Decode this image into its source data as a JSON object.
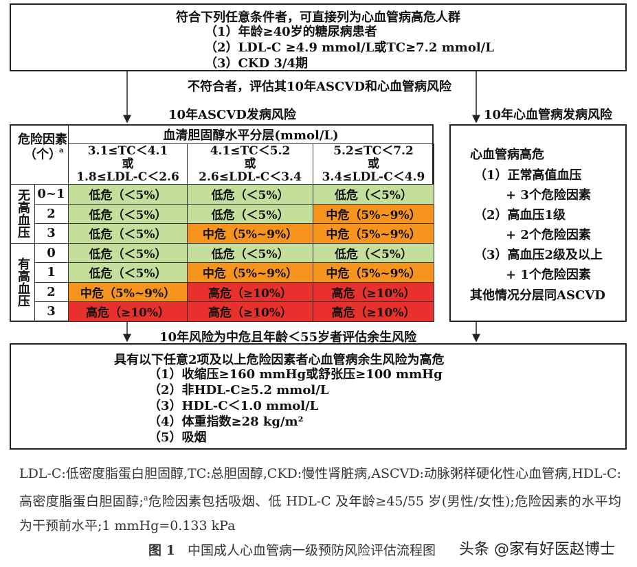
{
  "top_box": {
    "title": "符合下列任意条件者，可直接列为心血管病高危人群",
    "items": [
      "（1）年龄≥40岁的糖尿病患者",
      "（2）LDL-C ≥4.9 mmol/L或TC≥7.2 mmol/L",
      "（3）CKD 3/4期"
    ]
  },
  "middle_text": "不符合者，评估其10年ASCVD和心血管病风险",
  "left_label": "10年ASCVD发病风险",
  "right_label": "10年心血管病发病风险",
  "table": {
    "corner": "危险因素",
    "corner_sup": "a",
    "corner_unit": "（个）",
    "header": "血清胆固醇水平分层(mmol/L)",
    "columns": [
      {
        "tc": "3.1≤TC＜4.1",
        "or": "或",
        "ldl": "1.8≤LDL-C＜2.6"
      },
      {
        "tc": "4.1≤TC＜5.2",
        "or": "或",
        "ldl": "2.6≤LDL-C＜3.4"
      },
      {
        "tc": "5.2≤TC＜7.2",
        "or": "或",
        "ldl": "3.4≤LDL-C＜4.9"
      }
    ],
    "groups": [
      {
        "label": "无高血压",
        "rows": [
          {
            "count": "0~1",
            "cells": [
              {
                "text": "低危（＜5%）",
                "color": "#c4df9b"
              },
              {
                "text": "低危（＜5%）",
                "color": "#c4df9b"
              },
              {
                "text": "低危（＜5%）",
                "color": "#c4df9b"
              }
            ]
          },
          {
            "count": "2",
            "cells": [
              {
                "text": "低危（＜5%）",
                "color": "#c4df9b"
              },
              {
                "text": "低危（＜5%）",
                "color": "#c4df9b"
              },
              {
                "text": "中危（5%~9%）",
                "color": "#f7941d"
              }
            ]
          },
          {
            "count": "3",
            "cells": [
              {
                "text": "低危（＜5%）",
                "color": "#c4df9b"
              },
              {
                "text": "中危（5%~9%）",
                "color": "#f7941d"
              },
              {
                "text": "中危（5%~9%）",
                "color": "#f7941d"
              }
            ]
          }
        ]
      },
      {
        "label": "有高血压",
        "rows": [
          {
            "count": "0",
            "cells": [
              {
                "text": "低危（＜5%）",
                "color": "#c4df9b"
              },
              {
                "text": "低危（＜5%）",
                "color": "#c4df9b"
              },
              {
                "text": "低危（＜5%）",
                "color": "#c4df9b"
              }
            ]
          },
          {
            "count": "1",
            "cells": [
              {
                "text": "低危（＜5%）",
                "color": "#c4df9b"
              },
              {
                "text": "中危（5%~9%）",
                "color": "#f7941d"
              },
              {
                "text": "中危（5%~9%）",
                "color": "#f7941d"
              }
            ]
          },
          {
            "count": "2",
            "cells": [
              {
                "text": "中危（5%~9%）",
                "color": "#f7941d"
              },
              {
                "text": "高危（≥10%）",
                "color": "#e8312c"
              },
              {
                "text": "高危（≥10%）",
                "color": "#e8312c"
              }
            ]
          },
          {
            "count": "3",
            "cells": [
              {
                "text": "高危（≥10%）",
                "color": "#e8312c"
              },
              {
                "text": "高危（≥10%）",
                "color": "#e8312c"
              },
              {
                "text": "高危（≥10%）",
                "color": "#e8312c"
              }
            ]
          }
        ]
      }
    ]
  },
  "right_box": {
    "title": "心血管病高危",
    "items": [
      "（1）正常高值血压",
      "+ 3个危险因素",
      "（2）高血压1级",
      "+ 2个危险因素",
      "（3）高血压2级及以上",
      "+ 1个危险因素"
    ],
    "footer": "其他情况分层同ASCVD"
  },
  "bottom_note": "10年风险为中危且年龄＜55岁者评估余生风险",
  "bottom_box": {
    "title": "具有以下任意2项及以上危险因素者心血管病余生风险为高危",
    "items": [
      "（1）收缩压≥160 mmHg或舒张压≥100 mmHg",
      "（2）非HDL-C≥5.2 mmol/L",
      "（3）HDL-C＜1.0 mmol/L",
      "（4）体重指数≥28 kg/m²",
      "（5）吸烟"
    ]
  },
  "caption": {
    "part1": "LDL-C:低密度脂蛋白胆固醇,TC:总胆固醇,CKD:慢性肾脏病,ASCVD:动脉粥样硬化性心血管病,HDL-C:高密度脂蛋白胆固醇;",
    "sup": "a",
    "part2": "危险因素包括吸烟、低 HDL-C 及年龄≥45/55 岁(男性/女性);危险因素的水平均为干预前水平;1 mmHg=0.133 kPa"
  },
  "figure": {
    "label": "图 1",
    "title": "中国成人心血管病一级预防风险评估流程图"
  },
  "watermark": "头条 @家有好医赵博士"
}
